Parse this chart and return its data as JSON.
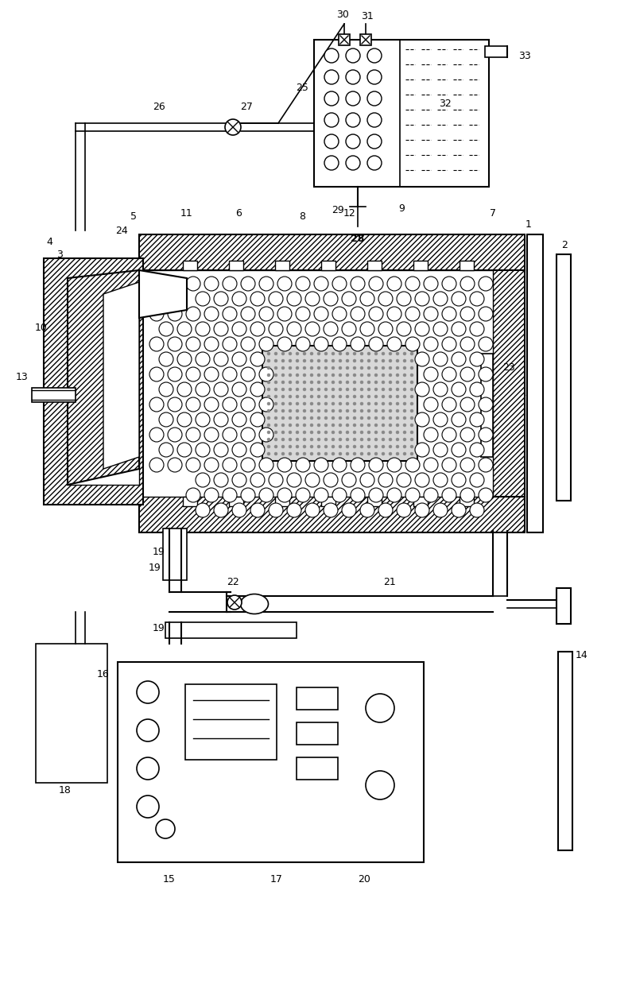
{
  "bg_color": "#ffffff",
  "line_color": "#000000",
  "figsize": [
    8.0,
    12.47
  ],
  "dpi": 100
}
